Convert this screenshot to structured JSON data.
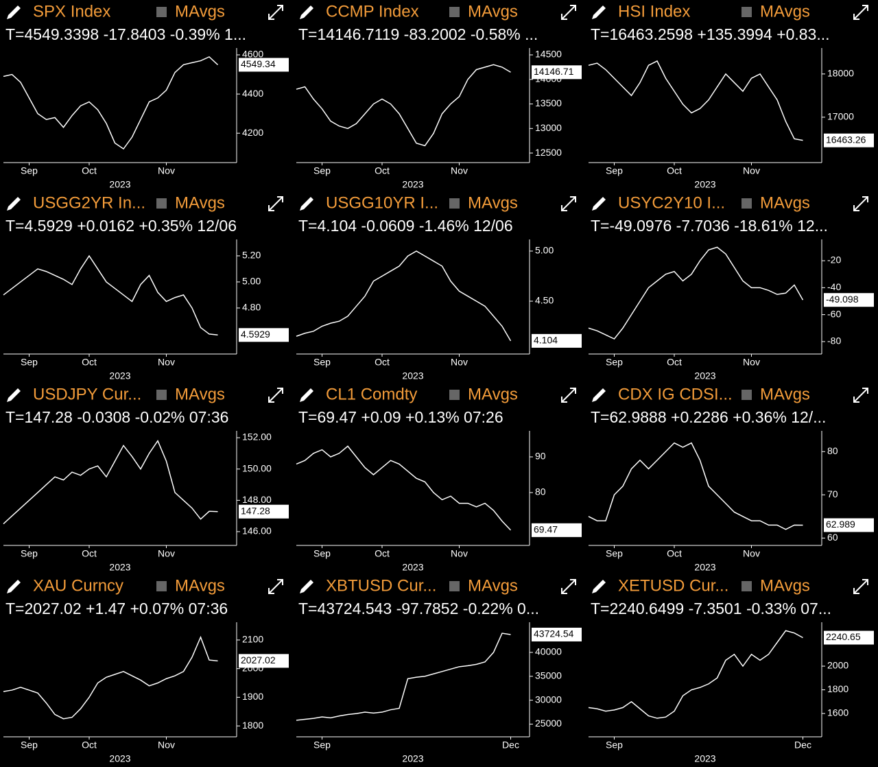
{
  "chart_data": [
    {
      "type": "line",
      "title": "SPX Index",
      "ma_label": "MAvgs",
      "quote": "T=4549.3398 -17.8403 -0.39% 1...",
      "quote_color": "#ff3b3b",
      "categories": [
        null,
        null,
        null,
        "Sep",
        null,
        null,
        null,
        null,
        null,
        null,
        "Oct",
        null,
        null,
        null,
        null,
        null,
        null,
        null,
        null,
        "Nov",
        null,
        null,
        null,
        null,
        null,
        null
      ],
      "series": [
        {
          "color": "#ffffff",
          "values": [
            4490,
            4500,
            4460,
            4380,
            4300,
            4270,
            4280,
            4230,
            4290,
            4340,
            4360,
            4320,
            4250,
            4150,
            4120,
            4180,
            4270,
            4360,
            4380,
            4420,
            4510,
            4550,
            4560,
            4570,
            4590,
            4549.34
          ]
        }
      ],
      "last_label": "4549.34",
      "xlabel": "2023",
      "ylim": [
        4050,
        4635
      ],
      "yticks": [
        4200,
        4400,
        4600
      ]
    },
    {
      "type": "line",
      "title": "CCMP Index",
      "ma_label": "MAvgs",
      "quote": "T=14146.7119 -83.2002 -0.58% ...",
      "quote_color": "#ff3b3b",
      "categories": [
        null,
        null,
        null,
        "Sep",
        null,
        null,
        null,
        null,
        null,
        null,
        "Oct",
        null,
        null,
        null,
        null,
        null,
        null,
        null,
        null,
        "Nov",
        null,
        null,
        null,
        null,
        null,
        null
      ],
      "series": [
        {
          "color": "#ffffff",
          "values": [
            13800,
            13850,
            13600,
            13400,
            13150,
            13050,
            13000,
            13100,
            13300,
            13500,
            13600,
            13500,
            13300,
            13000,
            12700,
            12650,
            12900,
            13300,
            13500,
            13650,
            14000,
            14200,
            14250,
            14300,
            14250,
            14146.71
          ]
        }
      ],
      "last_label": "14146.71",
      "xlabel": "2023",
      "ylim": [
        12305,
        14640
      ],
      "yticks": [
        12500,
        13000,
        13500,
        14000,
        14500
      ]
    },
    {
      "type": "line",
      "title": "HSI Index",
      "ma_label": "MAvgs",
      "quote": "T=16463.2598 +135.3994 +0.83...",
      "quote_color": "#3ddc3d",
      "categories": [
        null,
        null,
        null,
        "Sep",
        null,
        null,
        null,
        null,
        null,
        null,
        "Oct",
        null,
        null,
        null,
        null,
        null,
        null,
        null,
        null,
        "Nov",
        null,
        null,
        null,
        null,
        null,
        null
      ],
      "series": [
        {
          "color": "#ffffff",
          "values": [
            18200,
            18250,
            18100,
            17900,
            17700,
            17500,
            17800,
            18200,
            18300,
            17900,
            17600,
            17300,
            17100,
            17200,
            17400,
            17700,
            18000,
            17800,
            17600,
            17900,
            18000,
            17700,
            17400,
            16900,
            16500,
            16463.26
          ]
        }
      ],
      "last_label": "16463.26",
      "xlabel": "2023",
      "ylim": [
        15950,
        18600
      ],
      "yticks": [
        17000,
        18000
      ]
    },
    {
      "type": "line",
      "title": "USGG2YR In...",
      "ma_label": "MAvgs",
      "quote": "T=4.5929 +0.0162 +0.35% 12/06",
      "quote_color": "#3ddc3d",
      "categories": [
        null,
        null,
        null,
        "Sep",
        null,
        null,
        null,
        null,
        null,
        null,
        "Oct",
        null,
        null,
        null,
        null,
        null,
        null,
        null,
        null,
        "Nov",
        null,
        null,
        null,
        null,
        null,
        null
      ],
      "series": [
        {
          "color": "#ffffff",
          "values": [
            4.9,
            4.95,
            5.0,
            5.05,
            5.1,
            5.08,
            5.05,
            5.02,
            4.98,
            5.1,
            5.2,
            5.1,
            5.0,
            4.95,
            4.9,
            4.85,
            4.98,
            5.05,
            4.92,
            4.85,
            4.88,
            4.9,
            4.8,
            4.65,
            4.6,
            4.5929
          ]
        }
      ],
      "last_label": "4.5929",
      "xlabel": "2023",
      "ylim": [
        4.447,
        5.326
      ],
      "yticks": [
        {
          "value": 4.8,
          "label": "4.80"
        },
        {
          "value": 5,
          "label": "5.00"
        },
        {
          "value": 5.2,
          "label": "5.20"
        }
      ]
    },
    {
      "type": "line",
      "title": "USGG10YR I...",
      "ma_label": "MAvgs",
      "quote": "T=4.104 -0.0609 -1.46% 12/06",
      "quote_color": "#ff3b3b",
      "categories": [
        null,
        null,
        null,
        "Sep",
        null,
        null,
        null,
        null,
        null,
        null,
        "Oct",
        null,
        null,
        null,
        null,
        null,
        null,
        null,
        null,
        "Nov",
        null,
        null,
        null,
        null,
        null,
        null
      ],
      "series": [
        {
          "color": "#ffffff",
          "values": [
            4.15,
            4.18,
            4.2,
            4.25,
            4.28,
            4.3,
            4.35,
            4.45,
            4.55,
            4.7,
            4.75,
            4.8,
            4.85,
            4.95,
            5.0,
            4.95,
            4.9,
            4.85,
            4.7,
            4.6,
            4.55,
            4.5,
            4.45,
            4.35,
            4.25,
            4.104
          ]
        }
      ],
      "last_label": "4.104",
      "xlabel": "2023",
      "ylim": [
        3.973,
        5.116
      ],
      "yticks": [
        {
          "value": 4.5,
          "label": "4.50"
        },
        {
          "value": 5,
          "label": "5.00"
        }
      ]
    },
    {
      "type": "line",
      "title": "USYC2Y10 I...",
      "ma_label": "MAvgs",
      "quote": "T=-49.0976 -7.7036 -18.61% 12...",
      "quote_color": "#ff3b3b",
      "categories": [
        null,
        null,
        null,
        "Sep",
        null,
        null,
        null,
        null,
        null,
        null,
        "Oct",
        null,
        null,
        null,
        null,
        null,
        null,
        null,
        null,
        "Nov",
        null,
        null,
        null,
        null,
        null,
        null
      ],
      "series": [
        {
          "color": "#ffffff",
          "values": [
            -70,
            -72,
            -75,
            -78,
            -70,
            -60,
            -50,
            -40,
            -35,
            -30,
            -28,
            -35,
            -30,
            -20,
            -12,
            -10,
            -15,
            -25,
            -35,
            -40,
            -40,
            -42,
            -45,
            -44,
            -38,
            -49.098
          ]
        }
      ],
      "last_label": "-49.098",
      "xlabel": "2023",
      "ylim": [
        -89.2,
        -4.2
      ],
      "yticks": [
        -80,
        -60,
        -40,
        -20
      ]
    },
    {
      "type": "line",
      "title": "USDJPY Cur...",
      "ma_label": "MAvgs",
      "quote": "T=147.28 -0.0308 -0.02% 07:36",
      "quote_color": "#ff3b3b",
      "categories": [
        null,
        null,
        null,
        "Sep",
        null,
        null,
        null,
        null,
        null,
        null,
        "Oct",
        null,
        null,
        null,
        null,
        null,
        null,
        null,
        null,
        "Nov",
        null,
        null,
        null,
        null,
        null,
        null
      ],
      "series": [
        {
          "color": "#ffffff",
          "values": [
            146.5,
            147,
            147.5,
            148,
            148.5,
            149,
            149.5,
            149.3,
            149.8,
            149.6,
            150,
            150.2,
            149.5,
            150.5,
            151.5,
            150.8,
            150,
            151,
            151.8,
            150.5,
            148.5,
            148,
            147.5,
            146.8,
            147.3,
            147.28
          ]
        }
      ],
      "last_label": "147.28",
      "xlabel": "2023",
      "ylim": [
        145.12,
        152.44
      ],
      "yticks": [
        {
          "value": 146,
          "label": "146.00"
        },
        {
          "value": 148,
          "label": "148.00"
        },
        {
          "value": 150,
          "label": "150.00"
        },
        {
          "value": 152,
          "label": "152.00"
        }
      ]
    },
    {
      "type": "line",
      "title": "CL1 Comdty",
      "ma_label": "MAvgs",
      "quote": "T=69.47 +0.09 +0.13% 07:26",
      "quote_color": "#3ddc3d",
      "categories": [
        null,
        null,
        null,
        "Sep",
        null,
        null,
        null,
        null,
        null,
        null,
        "Oct",
        null,
        null,
        null,
        null,
        null,
        null,
        null,
        null,
        "Nov",
        null,
        null,
        null,
        null,
        null,
        null
      ],
      "series": [
        {
          "color": "#ffffff",
          "values": [
            88,
            89,
            91,
            92,
            90,
            91,
            93,
            90,
            87,
            85,
            87,
            89,
            88,
            86,
            84,
            83,
            80,
            78,
            79,
            77,
            77,
            76,
            77,
            75,
            72,
            69.47
          ]
        }
      ],
      "last_label": "69.47",
      "xlabel": "2023",
      "ylim": [
        65.2,
        97.3
      ],
      "yticks": [
        80,
        90
      ]
    },
    {
      "type": "line",
      "title": "CDX IG CDSI...",
      "ma_label": "MAvgs",
      "quote": "T=62.9888 +0.2286 +0.36% 12/...",
      "quote_color": "#ff3b3b",
      "categories": [
        null,
        null,
        null,
        "Sep",
        null,
        null,
        null,
        null,
        null,
        null,
        "Oct",
        null,
        null,
        null,
        null,
        null,
        null,
        null,
        null,
        "Nov",
        null,
        null,
        null,
        null,
        null,
        null
      ],
      "series": [
        {
          "color": "#ffffff",
          "values": [
            65,
            64,
            64,
            70,
            72,
            76,
            78,
            76,
            78,
            80,
            82,
            81,
            82,
            78,
            72,
            70,
            68,
            66,
            65,
            64,
            64,
            63,
            63,
            62,
            63,
            62.989
          ]
        }
      ],
      "last_label": "62.989",
      "xlabel": "2023",
      "ylim": [
        58.3,
        84.8
      ],
      "yticks": [
        60,
        70,
        80
      ]
    },
    {
      "type": "line",
      "title": "XAU Curncy",
      "ma_label": "MAvgs",
      "quote": "T=2027.02 +1.47 +0.07% 07:36",
      "quote_color": "#3ddc3d",
      "categories": [
        null,
        null,
        null,
        "Sep",
        null,
        null,
        null,
        null,
        null,
        null,
        "Oct",
        null,
        null,
        null,
        null,
        null,
        null,
        null,
        null,
        "Nov",
        null,
        null,
        null,
        null,
        null,
        null
      ],
      "series": [
        {
          "color": "#ffffff",
          "values": [
            1920,
            1925,
            1935,
            1925,
            1915,
            1880,
            1840,
            1825,
            1830,
            1860,
            1900,
            1950,
            1970,
            1980,
            1990,
            1975,
            1960,
            1940,
            1950,
            1965,
            1975,
            1990,
            2040,
            2110,
            2030,
            2027.02
          ]
        }
      ],
      "last_label": "2027.02",
      "xlabel": "2023",
      "ylim": [
        1762,
        2162
      ],
      "yticks": [
        1800,
        1900,
        2000,
        2100
      ]
    },
    {
      "type": "line",
      "title": "XBTUSD Cur...",
      "ma_label": "MAvgs",
      "quote": "T=43724.543 -97.7852 -0.22% 0...",
      "quote_color": "#ff3b3b",
      "categories": [
        null,
        null,
        null,
        "Sep",
        null,
        null,
        null,
        null,
        null,
        null,
        null,
        null,
        null,
        null,
        null,
        null,
        null,
        null,
        null,
        null,
        null,
        null,
        null,
        null,
        null,
        "Dec"
      ],
      "series": [
        {
          "color": "#ffffff",
          "values": [
            25800,
            26000,
            26200,
            26500,
            26300,
            26700,
            27000,
            27200,
            27500,
            27300,
            27500,
            28000,
            28300,
            34500,
            34800,
            35000,
            35500,
            36000,
            36500,
            37000,
            37200,
            37500,
            38000,
            40000,
            44000,
            43724.54
          ]
        }
      ],
      "last_label": "43724.54",
      "xlabel": "2023",
      "ylim": [
        22340,
        46300
      ],
      "yticks": [
        25000,
        30000,
        35000,
        40000
      ]
    },
    {
      "type": "line",
      "title": "XETUSD Cur...",
      "ma_label": "MAvgs",
      "quote": "T=2240.6499 -7.3501 -0.33% 07...",
      "quote_color": "#ff3b3b",
      "categories": [
        null,
        null,
        null,
        "Sep",
        null,
        null,
        null,
        null,
        null,
        null,
        null,
        null,
        null,
        null,
        null,
        null,
        null,
        null,
        null,
        null,
        null,
        null,
        null,
        null,
        null,
        "Dec"
      ],
      "series": [
        {
          "color": "#ffffff",
          "values": [
            1650,
            1640,
            1620,
            1630,
            1650,
            1700,
            1640,
            1580,
            1560,
            1570,
            1620,
            1750,
            1800,
            1820,
            1850,
            1900,
            2050,
            2100,
            2000,
            2100,
            2050,
            2100,
            2200,
            2300,
            2280,
            2240.65
          ]
        }
      ],
      "last_label": "2240.65",
      "xlabel": "2023",
      "ylim": [
        1403,
        2371
      ],
      "yticks": [
        1600,
        1800,
        2000
      ]
    }
  ]
}
